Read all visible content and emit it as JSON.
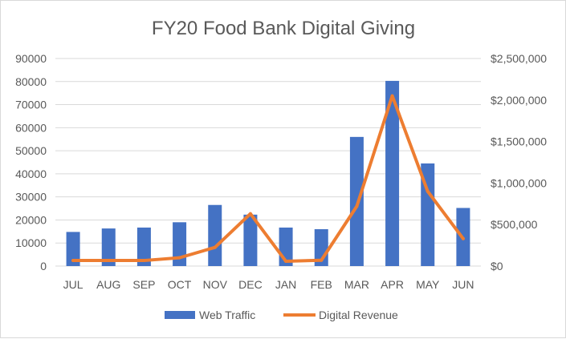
{
  "chart_data": {
    "type": "bar",
    "title": "FY20 Food Bank Digital Giving",
    "categories": [
      "JUL",
      "AUG",
      "SEP",
      "OCT",
      "NOV",
      "DEC",
      "JAN",
      "FEB",
      "MAR",
      "APR",
      "MAY",
      "JUN"
    ],
    "series": [
      {
        "name": "Web Traffic",
        "type": "bar",
        "axis": "left",
        "color": "#4472C4",
        "values": [
          14800,
          16300,
          16700,
          19000,
          26500,
          22300,
          16700,
          16000,
          56000,
          80300,
          44500,
          25200
        ]
      },
      {
        "name": "Digital Revenue",
        "type": "line",
        "axis": "right",
        "color": "#ED7D31",
        "values": [
          67000,
          67000,
          67000,
          100000,
          225000,
          630000,
          58000,
          70000,
          720000,
          2050000,
          900000,
          330000
        ]
      }
    ],
    "y_left": {
      "ylim": [
        0,
        90000
      ],
      "ticks": [
        "0",
        "10000",
        "20000",
        "30000",
        "40000",
        "50000",
        "60000",
        "70000",
        "80000",
        "90000"
      ]
    },
    "y_right": {
      "ylim": [
        0,
        2500000
      ],
      "ticks": [
        "$0",
        "$500,000",
        "$1,000,000",
        "$1,500,000",
        "$2,000,000",
        "$2,500,000"
      ]
    },
    "grid": true,
    "legend_position": "bottom"
  }
}
